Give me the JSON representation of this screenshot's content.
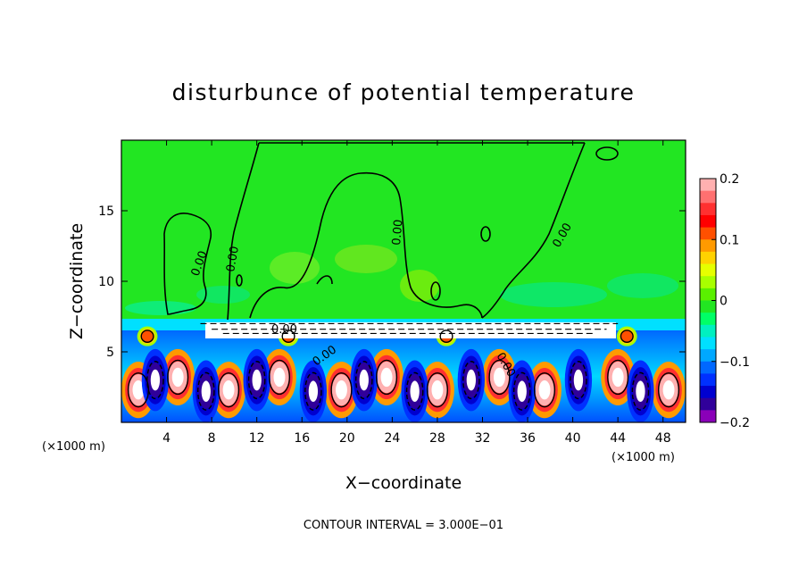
{
  "chart_data": {
    "type": "heatmap",
    "title": "disturbunce of potential temperature",
    "xlabel": "X−coordinate",
    "ylabel": "Z−coordinate",
    "x_unit": "(×1000 m)",
    "x_unit_left": "(×1000 m)",
    "xlim": [
      0,
      50
    ],
    "ylim": [
      0,
      20
    ],
    "x_ticks": [
      4,
      8,
      12,
      16,
      20,
      24,
      28,
      32,
      36,
      40,
      44,
      48
    ],
    "x_tick_labels": [
      "4",
      "8",
      "12",
      "16",
      "20",
      "24",
      "28",
      "32",
      "36",
      "40",
      "44",
      "48"
    ],
    "y_ticks": [
      5,
      10,
      15
    ],
    "y_tick_labels": [
      "5",
      "10",
      "15"
    ],
    "footer": "CONTOUR INTERVAL = 3.000E−01",
    "contour_interval": 0.3,
    "contour_labels": [
      {
        "text": "0.00",
        "x": 5.5,
        "y": 11.0
      },
      {
        "text": "0.00",
        "x": 9.9,
        "y": 11.0
      },
      {
        "text": "0.00",
        "x": 24.5,
        "y": 13.5
      },
      {
        "text": "0.00",
        "x": 39.3,
        "y": 13.5
      },
      {
        "text": "0.00",
        "x": 19.5,
        "y": 5.2
      },
      {
        "text": "0.00",
        "x": 14.2,
        "y": 6.7
      },
      {
        "text": "0.00",
        "x": 34.2,
        "y": 4.5
      }
    ],
    "colorbar": {
      "min": -0.2,
      "max": 0.2,
      "tick_values": [
        0.2,
        0.1,
        0,
        -0.1,
        -0.2
      ],
      "tick_labels": [
        "0.2",
        "0.1",
        "0",
        "−0.1",
        "−0.2"
      ],
      "colors_top_to_bottom": [
        "#ffb0b0",
        "#ff7070",
        "#ff3030",
        "#ff0000",
        "#ff5000",
        "#ff9a00",
        "#ffd200",
        "#e6ff00",
        "#a8ff00",
        "#5af000",
        "#22e622",
        "#00ff66",
        "#00f0c0",
        "#00e0ff",
        "#00a8ff",
        "#0068ff",
        "#0030ff",
        "#0000d0",
        "#30009a",
        "#8a00b8"
      ]
    },
    "regions": {
      "upper_layer": "near-zero (green) field for z > 7.3",
      "boundary_z": 7.3,
      "lower_layer": "strong positive and negative perturbations for z < 7.3",
      "positive_cells_x": [
        1.5,
        5.0,
        9.5,
        14.0,
        19.5,
        23.5,
        28.0,
        33.5,
        37.5,
        44.0,
        48.5
      ],
      "negative_cells_x": [
        3.0,
        7.5,
        12.0,
        17.0,
        21.5,
        26.0,
        31.0,
        35.5,
        40.5,
        46.0
      ]
    }
  }
}
